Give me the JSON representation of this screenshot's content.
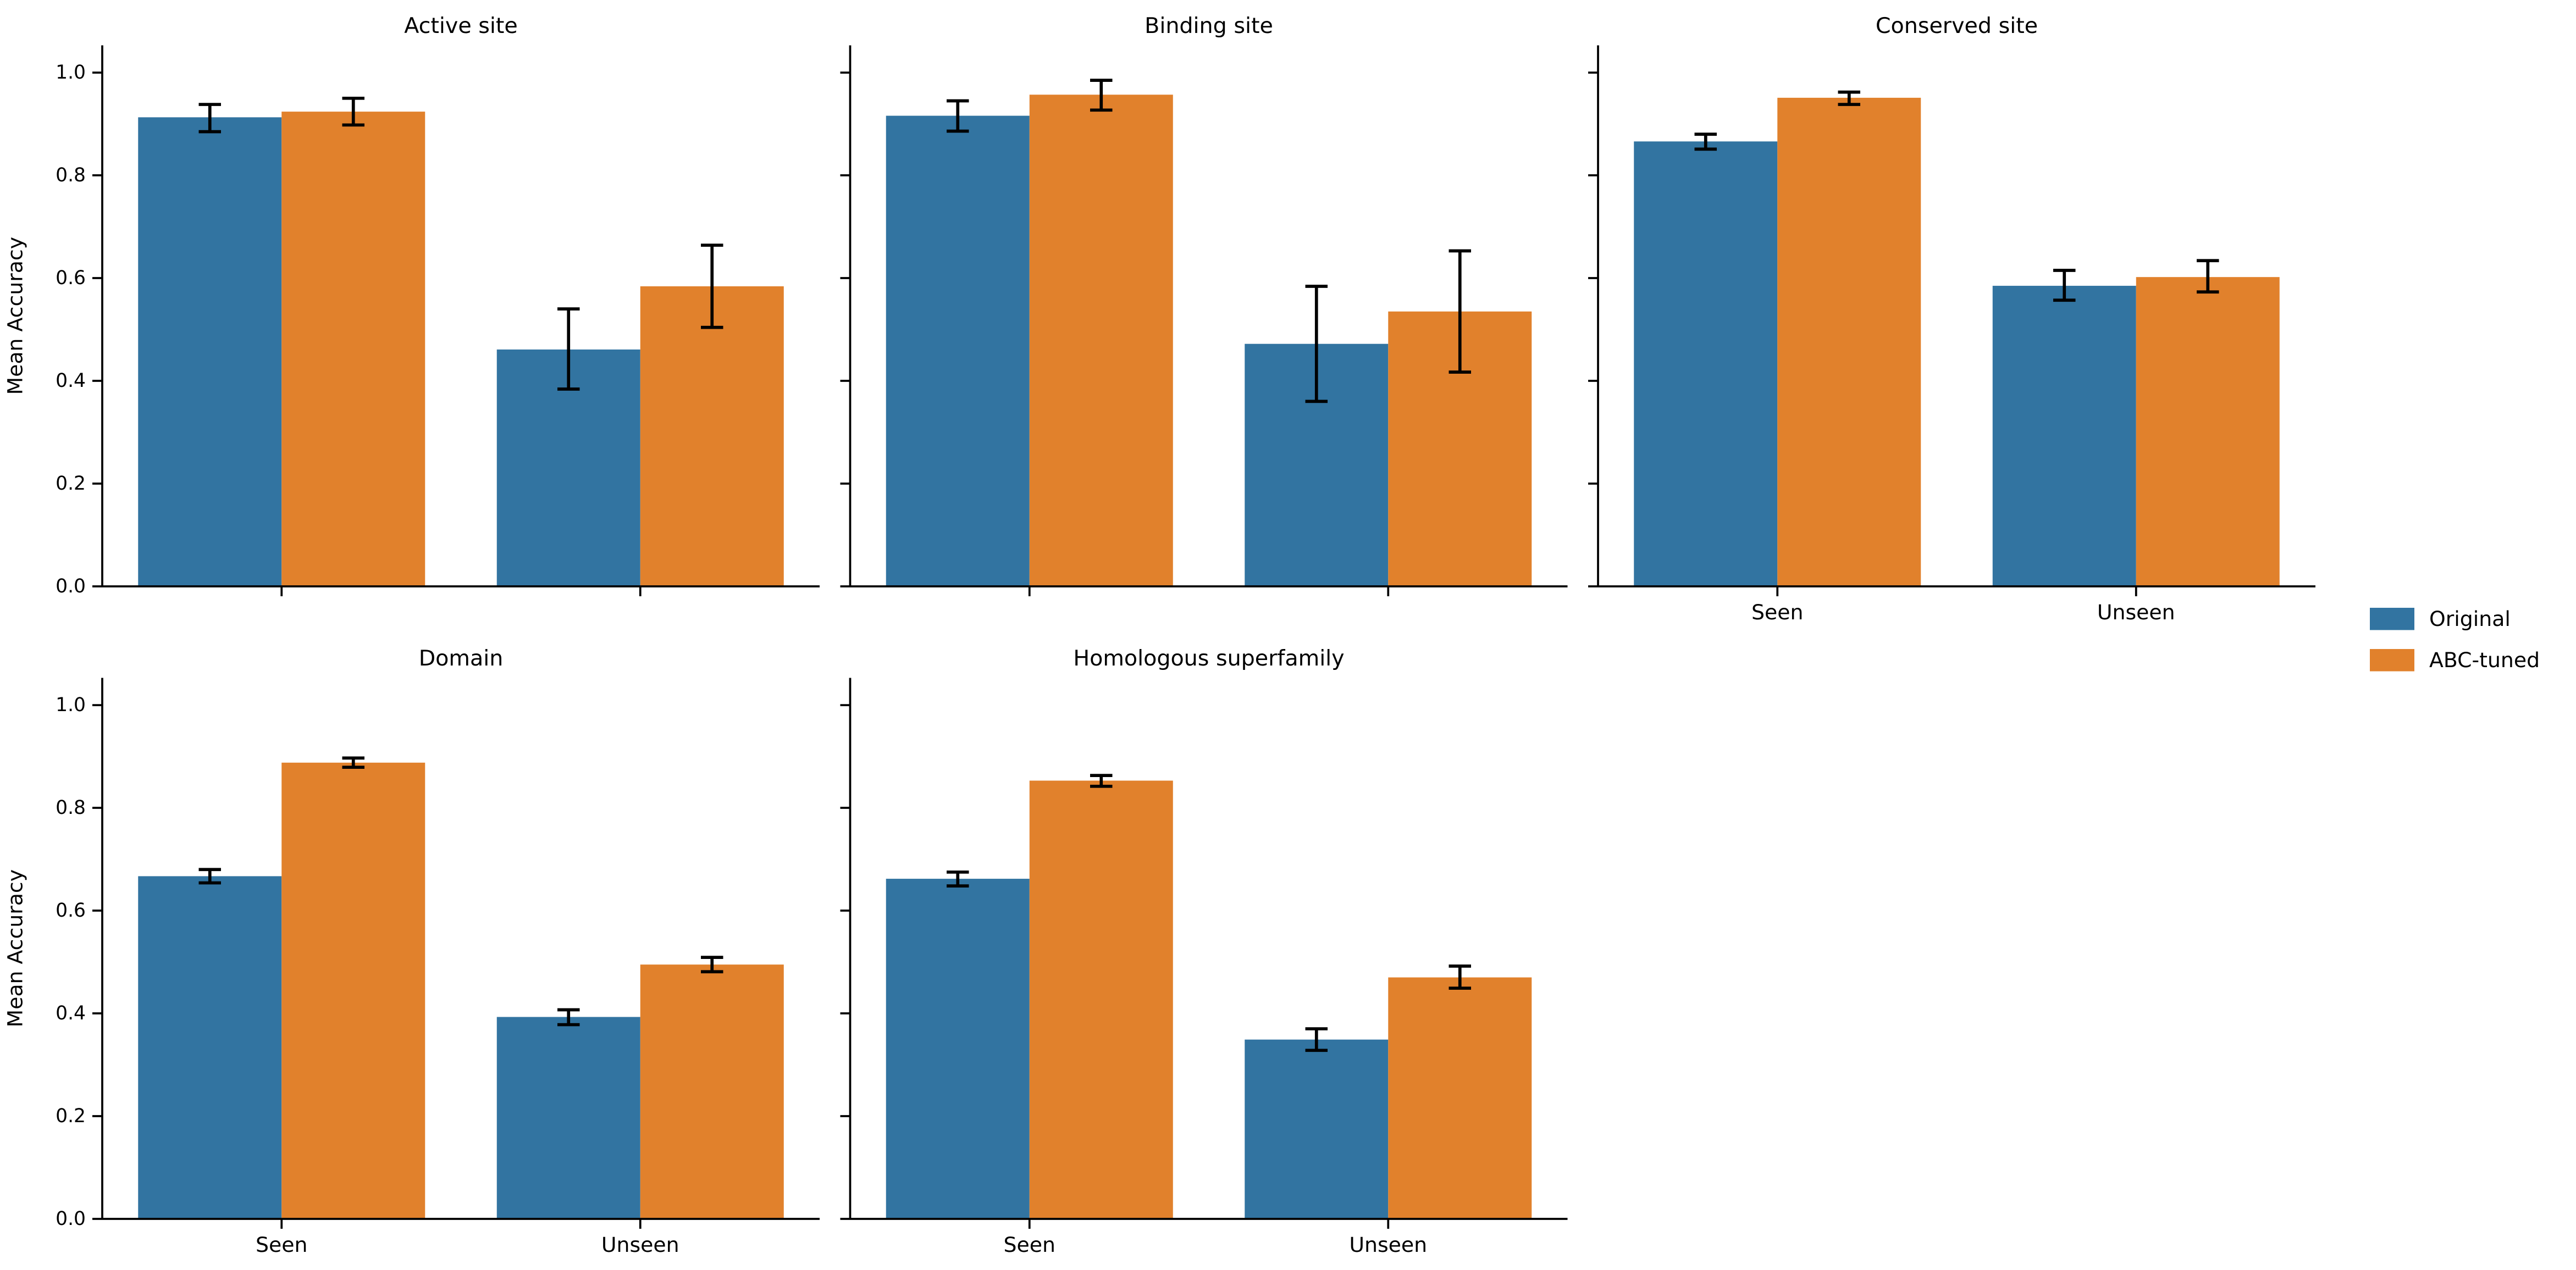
{
  "figure": {
    "background": "#ffffff",
    "text_color": "#000000",
    "axis_color": "#000000",
    "errorbar_color": "#000000"
  },
  "legend": {
    "items": [
      {
        "label": "Original",
        "color": "#3274a1"
      },
      {
        "label": "ABC-tuned",
        "color": "#e1812c"
      }
    ]
  },
  "chart_data": {
    "type": "bar",
    "layout": "faceted-grouped-bars-with-error-bars",
    "categories": [
      "Seen",
      "Unseen"
    ],
    "series_names": [
      "Original",
      "ABC-tuned"
    ],
    "series_colors": {
      "Original": "#3274a1",
      "ABC-tuned": "#e1812c"
    },
    "ylabel": "Mean Accuracy",
    "ylim": [
      0.0,
      1.05
    ],
    "yticks": [
      0.0,
      0.2,
      0.4,
      0.6,
      0.8,
      1.0
    ],
    "ytick_labels": [
      "0.0",
      "0.2",
      "0.4",
      "0.6",
      "0.8",
      "1.0"
    ],
    "grid": false,
    "legend_position": "right-middle",
    "facets": [
      {
        "title": "Active site",
        "series": [
          {
            "name": "Original",
            "values": [
              0.913,
              0.461
            ],
            "ci_low": [
              0.885,
              0.384
            ],
            "ci_high": [
              0.938,
              0.54
            ]
          },
          {
            "name": "ABC-tuned",
            "values": [
              0.924,
              0.584
            ],
            "ci_low": [
              0.898,
              0.504
            ],
            "ci_high": [
              0.95,
              0.664
            ]
          }
        ]
      },
      {
        "title": "Binding site",
        "series": [
          {
            "name": "Original",
            "values": [
              0.916,
              0.472
            ],
            "ci_low": [
              0.886,
              0.36
            ],
            "ci_high": [
              0.945,
              0.584
            ]
          },
          {
            "name": "ABC-tuned",
            "values": [
              0.957,
              0.535
            ],
            "ci_low": [
              0.927,
              0.417
            ],
            "ci_high": [
              0.985,
              0.653
            ]
          }
        ]
      },
      {
        "title": "Conserved site",
        "series": [
          {
            "name": "Original",
            "values": [
              0.866,
              0.585
            ],
            "ci_low": [
              0.851,
              0.557
            ],
            "ci_high": [
              0.88,
              0.615
            ]
          },
          {
            "name": "ABC-tuned",
            "values": [
              0.951,
              0.602
            ],
            "ci_low": [
              0.938,
              0.573
            ],
            "ci_high": [
              0.962,
              0.634
            ]
          }
        ]
      },
      {
        "title": "Domain",
        "series": [
          {
            "name": "Original",
            "values": [
              0.667,
              0.393
            ],
            "ci_low": [
              0.654,
              0.378
            ],
            "ci_high": [
              0.68,
              0.407
            ]
          },
          {
            "name": "ABC-tuned",
            "values": [
              0.888,
              0.495
            ],
            "ci_low": [
              0.879,
              0.481
            ],
            "ci_high": [
              0.897,
              0.509
            ]
          }
        ]
      },
      {
        "title": "Homologous superfamily",
        "series": [
          {
            "name": "Original",
            "values": [
              0.662,
              0.349
            ],
            "ci_low": [
              0.648,
              0.328
            ],
            "ci_high": [
              0.675,
              0.37
            ]
          },
          {
            "name": "ABC-tuned",
            "values": [
              0.853,
              0.47
            ],
            "ci_low": [
              0.842,
              0.449
            ],
            "ci_high": [
              0.863,
              0.492
            ]
          }
        ]
      }
    ]
  }
}
